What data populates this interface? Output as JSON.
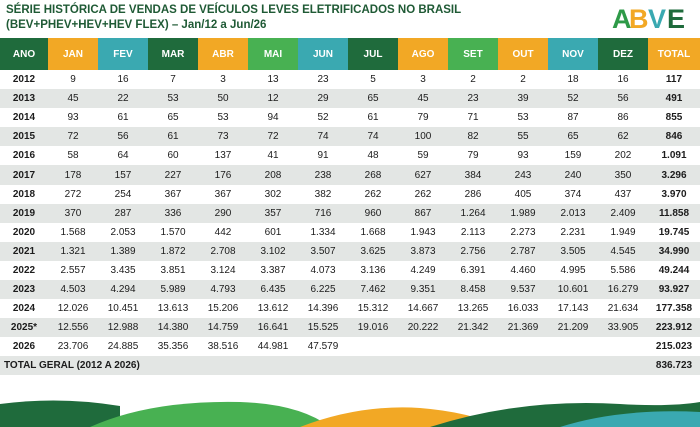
{
  "title_line1": "SÉRIE HISTÓRICA DE VENDAS DE VEÍCULOS LEVES ELETRIFICADOS NO BRASIL",
  "title_line2": "(BEV+PHEV+HEV+HEV FLEX) – Jan/12 a Jun/26",
  "logo_text": "ABVE",
  "colors": {
    "dark_green": "#1f6b3c",
    "light_green": "#48b152",
    "orange": "#f2a825",
    "teal": "#3aa9b1"
  },
  "headers": [
    "ANO",
    "JAN",
    "FEV",
    "MAR",
    "ABR",
    "MAI",
    "JUN",
    "JUL",
    "AGO",
    "SET",
    "OUT",
    "NOV",
    "DEZ",
    "TOTAL"
  ],
  "rows": [
    [
      "2012",
      "9",
      "16",
      "7",
      "3",
      "13",
      "23",
      "5",
      "3",
      "2",
      "2",
      "18",
      "16",
      "117"
    ],
    [
      "2013",
      "45",
      "22",
      "53",
      "50",
      "12",
      "29",
      "65",
      "45",
      "23",
      "39",
      "52",
      "56",
      "491"
    ],
    [
      "2014",
      "93",
      "61",
      "65",
      "53",
      "94",
      "52",
      "61",
      "79",
      "71",
      "53",
      "87",
      "86",
      "855"
    ],
    [
      "2015",
      "72",
      "56",
      "61",
      "73",
      "72",
      "74",
      "74",
      "100",
      "82",
      "55",
      "65",
      "62",
      "846"
    ],
    [
      "2016",
      "58",
      "64",
      "60",
      "137",
      "41",
      "91",
      "48",
      "59",
      "79",
      "93",
      "159",
      "202",
      "1.091"
    ],
    [
      "2017",
      "178",
      "157",
      "227",
      "176",
      "208",
      "238",
      "268",
      "627",
      "384",
      "243",
      "240",
      "350",
      "3.296"
    ],
    [
      "2018",
      "272",
      "254",
      "367",
      "367",
      "302",
      "382",
      "262",
      "262",
      "286",
      "405",
      "374",
      "437",
      "3.970"
    ],
    [
      "2019",
      "370",
      "287",
      "336",
      "290",
      "357",
      "716",
      "960",
      "867",
      "1.264",
      "1.989",
      "2.013",
      "2.409",
      "11.858"
    ],
    [
      "2020",
      "1.568",
      "2.053",
      "1.570",
      "442",
      "601",
      "1.334",
      "1.668",
      "1.943",
      "2.113",
      "2.273",
      "2.231",
      "1.949",
      "19.745"
    ],
    [
      "2021",
      "1.321",
      "1.389",
      "1.872",
      "2.708",
      "3.102",
      "3.507",
      "3.625",
      "3.873",
      "2.756",
      "2.787",
      "3.505",
      "4.545",
      "34.990"
    ],
    [
      "2022",
      "2.557",
      "3.435",
      "3.851",
      "3.124",
      "3.387",
      "4.073",
      "3.136",
      "4.249",
      "6.391",
      "4.460",
      "4.995",
      "5.586",
      "49.244"
    ],
    [
      "2023",
      "4.503",
      "4.294",
      "5.989",
      "4.793",
      "6.435",
      "6.225",
      "7.462",
      "9.351",
      "8.458",
      "9.537",
      "10.601",
      "16.279",
      "93.927"
    ],
    [
      "2024",
      "12.026",
      "10.451",
      "13.613",
      "15.206",
      "13.612",
      "14.396",
      "15.312",
      "14.667",
      "13.265",
      "16.033",
      "17.143",
      "21.634",
      "177.358"
    ],
    [
      "2025*",
      "12.556",
      "12.988",
      "14.380",
      "14.759",
      "16.641",
      "15.525",
      "19.016",
      "20.222",
      "21.342",
      "21.369",
      "21.209",
      "33.905",
      "223.912"
    ],
    [
      "2026",
      "23.706",
      "24.885",
      "35.356",
      "38.516",
      "44.981",
      "47.579",
      "",
      "",
      "",
      "",
      "",
      "",
      "215.023"
    ]
  ],
  "grand_total": {
    "label": "TOTAL GERAL (2012 A 2026)",
    "value": "836.723"
  }
}
